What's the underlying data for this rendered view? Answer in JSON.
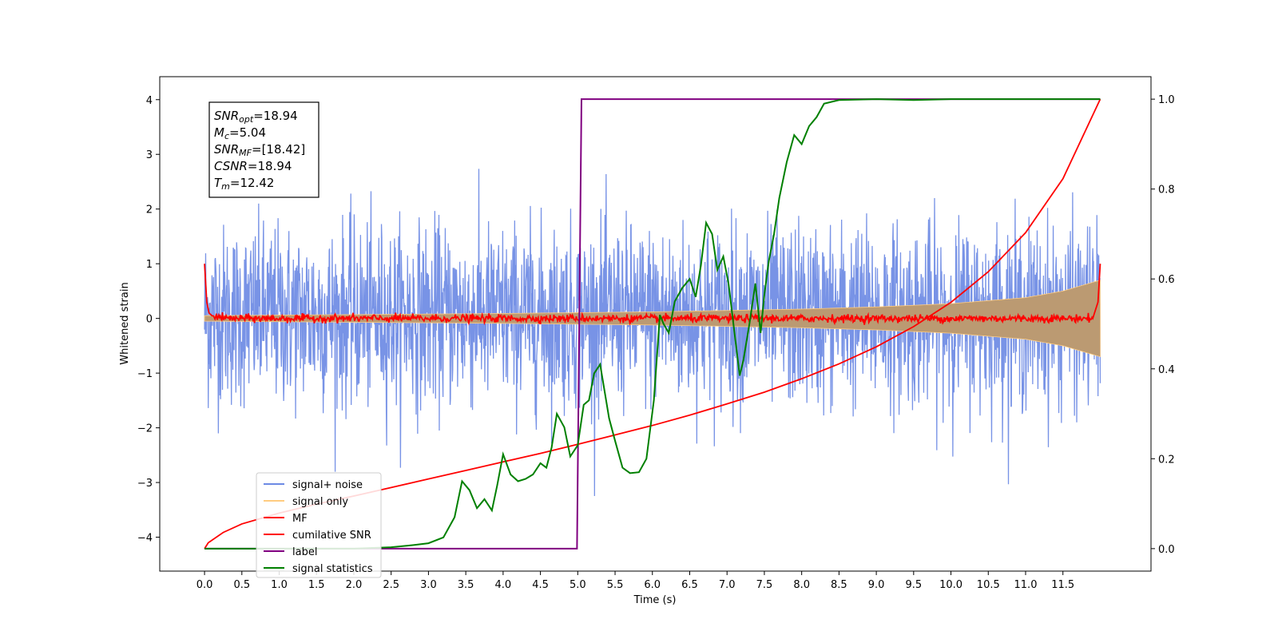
{
  "chart_data": {
    "type": "line",
    "xlabel": "Time (s)",
    "ylabel": "Whitened strain",
    "y2label": "",
    "xlim": [
      -0.6,
      12.68
    ],
    "ylim": [
      -4.62,
      4.42
    ],
    "y2lim": [
      -0.05,
      1.05
    ],
    "grid": false,
    "x_ticks": [
      "0.0",
      "0.5",
      "1.0",
      "1.5",
      "2.0",
      "2.5",
      "3.0",
      "3.5",
      "4.0",
      "4.5",
      "5.0",
      "5.5",
      "6.0",
      "6.5",
      "7.0",
      "7.5",
      "8.0",
      "8.5",
      "9.0",
      "9.5",
      "10.0",
      "10.5",
      "11.0",
      "11.5"
    ],
    "y_ticks": [
      "4",
      "3",
      "2",
      "1",
      "0",
      "−1",
      "−2",
      "−3",
      "−4"
    ],
    "y2_ticks": [
      "1.0",
      "0.8",
      "0.6",
      "0.4",
      "0.2",
      "0.0"
    ],
    "legend_position": "lower-left",
    "legend": [
      {
        "label": "signal+ noise",
        "color": "#6c8ae4"
      },
      {
        "label": "signal only",
        "color": "#ffcc80"
      },
      {
        "label": "MF",
        "color": "#ff0000"
      },
      {
        "label": "cumilative SNR",
        "color": "#ff0000"
      },
      {
        "label": "label",
        "color": "#800080"
      },
      {
        "label": "signal statistics",
        "color": "#008000"
      }
    ],
    "annotation": {
      "lines": [
        {
          "name": "SNR",
          "sub": "opt",
          "value": "=18.94"
        },
        {
          "name": "M",
          "sub": "c",
          "value": "=5.04"
        },
        {
          "name": "SNR",
          "sub": "MF",
          "value": "=[18.42]"
        },
        {
          "name": "CSNR",
          "sub": "",
          "value": "=18.94"
        },
        {
          "name": "T",
          "sub": "m",
          "value": "=12.42"
        }
      ]
    },
    "series": [
      {
        "name": "signal+ noise",
        "axis": "left",
        "color": "#6c8ae4",
        "description_points": {
          "x_start": 0.0,
          "x_end": 12.0,
          "typical_band": [
            -2.1,
            2.2
          ],
          "extremes": [
            -4.18,
            4.0
          ]
        }
      },
      {
        "name": "signal only",
        "axis": "left",
        "color": "#ffcc80",
        "envelope": {
          "x": [
            0,
            2,
            4,
            6,
            8,
            9,
            10,
            11,
            11.5,
            12
          ],
          "amplitude": [
            0.05,
            0.07,
            0.09,
            0.12,
            0.17,
            0.21,
            0.27,
            0.38,
            0.5,
            0.7
          ]
        }
      },
      {
        "name": "MF",
        "axis": "left",
        "color": "#ff0000",
        "x": [
          0.0,
          0.03,
          0.06,
          0.1,
          0.3,
          1.0,
          2.0,
          4.0,
          6.0,
          8.0,
          10.0,
          11.9,
          11.97,
          12.0
        ],
        "y": [
          1.0,
          0.3,
          0.1,
          0.05,
          0.0,
          0.0,
          0.0,
          0.0,
          0.0,
          0.0,
          0.0,
          0.0,
          0.3,
          1.0
        ]
      },
      {
        "name": "cumilative SNR",
        "axis": "right",
        "color": "#ff0000",
        "x": [
          0.0,
          0.05,
          0.25,
          0.5,
          1.0,
          1.5,
          2.0,
          2.5,
          3.0,
          3.5,
          4.0,
          4.5,
          5.0,
          5.5,
          6.0,
          6.5,
          7.0,
          7.5,
          8.0,
          8.5,
          9.0,
          9.5,
          10.0,
          10.5,
          11.0,
          11.5,
          12.0
        ],
        "y": [
          0.0,
          0.013,
          0.036,
          0.055,
          0.079,
          0.099,
          0.117,
          0.136,
          0.155,
          0.174,
          0.193,
          0.212,
          0.232,
          0.253,
          0.274,
          0.297,
          0.322,
          0.348,
          0.378,
          0.411,
          0.449,
          0.494,
          0.548,
          0.616,
          0.703,
          0.823,
          1.0
        ]
      },
      {
        "name": "label",
        "axis": "right",
        "color": "#800080",
        "x": [
          0.0,
          4.99,
          5.05,
          12.0
        ],
        "y": [
          0.0,
          0.0,
          1.0,
          1.0
        ]
      },
      {
        "name": "signal statistics",
        "axis": "right",
        "color": "#008000",
        "x": [
          0.0,
          1.0,
          2.0,
          2.5,
          2.8,
          3.0,
          3.2,
          3.35,
          3.45,
          3.55,
          3.65,
          3.75,
          3.85,
          3.92,
          4.0,
          4.1,
          4.2,
          4.3,
          4.4,
          4.5,
          4.58,
          4.65,
          4.72,
          4.82,
          4.9,
          5.0,
          5.08,
          5.15,
          5.22,
          5.3,
          5.36,
          5.42,
          5.5,
          5.6,
          5.7,
          5.82,
          5.92,
          6.02,
          6.1,
          6.15,
          6.22,
          6.3,
          6.4,
          6.5,
          6.58,
          6.65,
          6.72,
          6.8,
          6.87,
          6.95,
          7.02,
          7.1,
          7.17,
          7.22,
          7.3,
          7.38,
          7.45,
          7.5,
          7.56,
          7.63,
          7.7,
          7.8,
          7.9,
          8.0,
          8.1,
          8.2,
          8.3,
          8.5,
          9.0,
          9.5,
          10.0,
          11.0,
          12.0
        ],
        "y": [
          0.0,
          0.0,
          0.0,
          0.003,
          0.008,
          0.012,
          0.025,
          0.07,
          0.15,
          0.13,
          0.09,
          0.11,
          0.085,
          0.14,
          0.21,
          0.165,
          0.15,
          0.155,
          0.165,
          0.19,
          0.18,
          0.225,
          0.3,
          0.27,
          0.205,
          0.23,
          0.32,
          0.33,
          0.39,
          0.41,
          0.35,
          0.29,
          0.24,
          0.18,
          0.168,
          0.17,
          0.2,
          0.33,
          0.52,
          0.5,
          0.48,
          0.55,
          0.58,
          0.6,
          0.56,
          0.63,
          0.725,
          0.7,
          0.62,
          0.65,
          0.59,
          0.48,
          0.385,
          0.42,
          0.5,
          0.59,
          0.48,
          0.565,
          0.64,
          0.7,
          0.78,
          0.86,
          0.92,
          0.9,
          0.94,
          0.96,
          0.99,
          0.998,
          1.0,
          0.998,
          1.0,
          1.0,
          1.0
        ]
      }
    ]
  }
}
